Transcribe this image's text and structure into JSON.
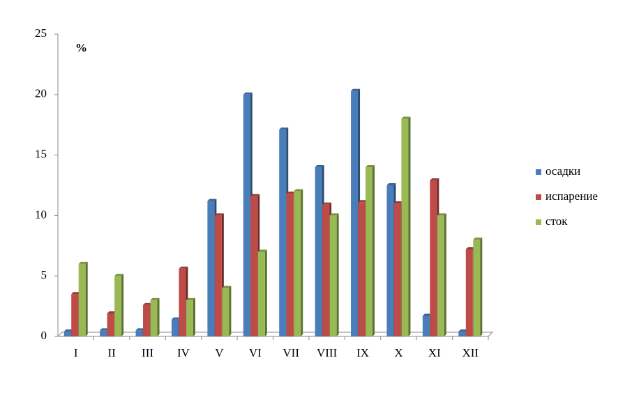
{
  "chart_data": {
    "type": "bar",
    "unit_label": "%",
    "categories": [
      "I",
      "II",
      "III",
      "IV",
      "V",
      "VI",
      "VII",
      "VIII",
      "IX",
      "X",
      "XI",
      "XII"
    ],
    "series": [
      {
        "name": "осадки",
        "color": "#4a7ebb",
        "values": [
          0.4,
          0.5,
          0.5,
          1.4,
          11.2,
          20,
          17.1,
          14,
          20.3,
          12.5,
          1.7,
          0.4
        ]
      },
      {
        "name": "испарение",
        "color": "#be4b48",
        "values": [
          3.5,
          1.9,
          2.6,
          5.6,
          10,
          11.6,
          11.8,
          10.9,
          11.1,
          11,
          12.9,
          7.2
        ]
      },
      {
        "name": "сток",
        "color": "#98b954",
        "values": [
          6,
          5,
          3,
          3,
          4,
          7,
          12,
          10,
          14,
          18,
          10,
          8
        ]
      }
    ],
    "ylim": [
      0,
      25
    ],
    "yticks": [
      0,
      5,
      10,
      15,
      20,
      25
    ],
    "grid": false,
    "legend": "right"
  }
}
